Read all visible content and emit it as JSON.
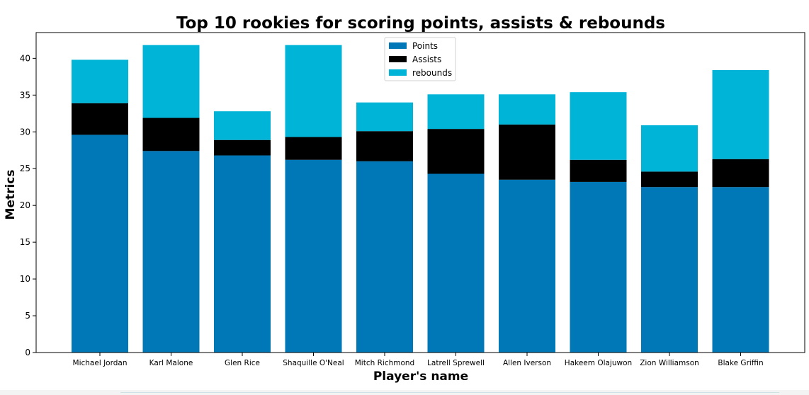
{
  "chart_data": {
    "type": "bar",
    "stacked": true,
    "title": "Top 10 rookies for scoring points, assists & rebounds",
    "xlabel": "Player's name",
    "ylabel": "Metrics",
    "ylim": [
      0,
      43.5
    ],
    "yticks": [
      0,
      5,
      10,
      15,
      20,
      25,
      30,
      35,
      40
    ],
    "legend_position": "top-center",
    "grid": false,
    "categories": [
      "Michael Jordan",
      "Karl Malone",
      "Glen Rice",
      "Shaquille O'Neal",
      "Mitch Richmond",
      "Latrell Sprewell",
      "Allen Iverson",
      "Hakeem Olajuwon",
      "Zion Williamson",
      "Blake Griffin"
    ],
    "series": [
      {
        "name": "Points",
        "color": "#0077b6",
        "values": [
          29.6,
          27.4,
          26.8,
          26.2,
          26.0,
          24.3,
          23.5,
          23.2,
          22.5,
          22.5
        ]
      },
      {
        "name": "Assists",
        "color": "#000000",
        "values": [
          4.3,
          4.5,
          2.1,
          3.1,
          4.1,
          6.1,
          7.5,
          3.0,
          2.1,
          3.8
        ]
      },
      {
        "name": "rebounds",
        "color": "#00b4d8",
        "values": [
          5.9,
          9.9,
          3.9,
          12.5,
          3.9,
          4.7,
          4.1,
          9.2,
          6.3,
          12.1
        ]
      }
    ]
  }
}
